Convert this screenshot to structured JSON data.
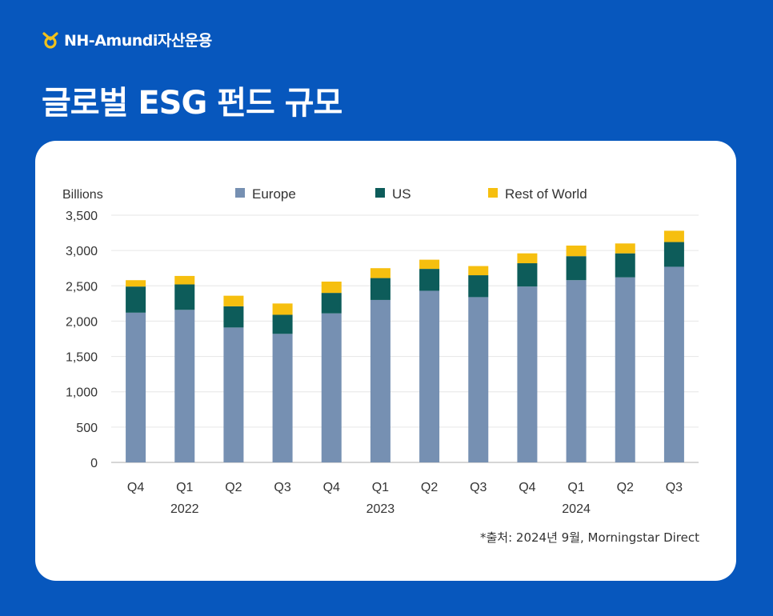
{
  "header": {
    "brand": "NH-Amundi자산운용",
    "title": "글로벌 ESG 펀드 규모",
    "brand_mark_color": "#f2c21b"
  },
  "source_note": "*출처: 2024년 9월, Morningstar Direct",
  "chart_data": {
    "type": "bar",
    "stacked": true,
    "ylabel": "Billions",
    "ylim": [
      0,
      3500
    ],
    "yticks": [
      0,
      500,
      1000,
      1500,
      2000,
      2500,
      3000,
      3500
    ],
    "ytick_labels": [
      "0",
      "500",
      "1,000",
      "1,500",
      "2,000",
      "2,500",
      "3,000",
      "3,500"
    ],
    "categories": [
      "Q4",
      "Q1",
      "Q2",
      "Q3",
      "Q4",
      "Q1",
      "Q2",
      "Q3",
      "Q4",
      "Q1",
      "Q2",
      "Q3"
    ],
    "year_labels": [
      {
        "label": "2022",
        "category_index": 1
      },
      {
        "label": "2023",
        "category_index": 5
      },
      {
        "label": "2024",
        "category_index": 9
      }
    ],
    "grid": true,
    "legend_position": "top",
    "series": [
      {
        "name": "Europe",
        "color": "#7690b2",
        "values": [
          2120,
          2160,
          1910,
          1820,
          2110,
          2300,
          2430,
          2340,
          2490,
          2580,
          2620,
          2770
        ]
      },
      {
        "name": "US",
        "color": "#0d5c5a",
        "values": [
          370,
          360,
          300,
          270,
          290,
          310,
          310,
          310,
          330,
          340,
          340,
          350
        ]
      },
      {
        "name": "Rest of World",
        "color": "#f6bf0f",
        "values": [
          90,
          120,
          150,
          160,
          160,
          140,
          130,
          130,
          140,
          150,
          140,
          160
        ]
      }
    ]
  }
}
